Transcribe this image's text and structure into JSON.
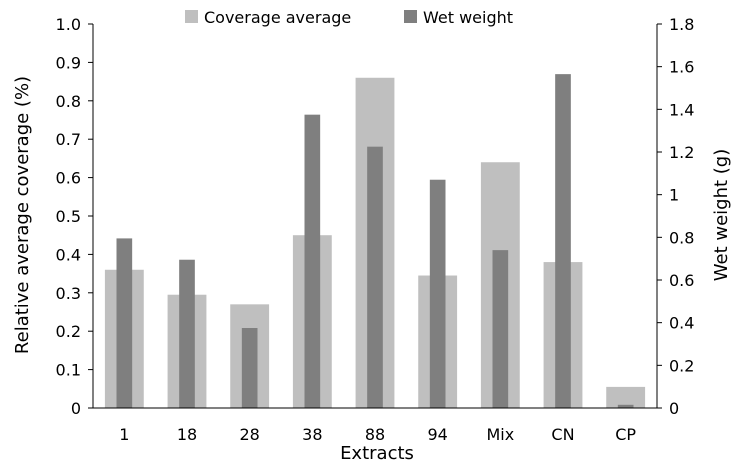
{
  "chart_data": {
    "type": "bar",
    "title": "",
    "xlabel": "Extracts",
    "ylabel": "Relative average coverage (%)",
    "y2label": "Wet weight (g)",
    "categories": [
      "1",
      "18",
      "28",
      "38",
      "88",
      "94",
      "Mix",
      "CN",
      "CP"
    ],
    "ylim": [
      0,
      1.0
    ],
    "y2lim": [
      0,
      1.8
    ],
    "yticks": [
      "0",
      "0.1",
      "0.2",
      "0.3",
      "0.4",
      "0.5",
      "0.6",
      "0.7",
      "0.8",
      "0.9",
      "1.0"
    ],
    "y2ticks": [
      "0",
      "0.2",
      "0.4",
      "0.6",
      "0.8",
      "1",
      "1.2",
      "1.4",
      "1.6",
      "1.8"
    ],
    "grid": false,
    "legend_position": "top-center",
    "series": [
      {
        "name": "Coverage average",
        "axis": "left",
        "color": "#bfbfbf",
        "values": [
          0.36,
          0.295,
          0.27,
          0.45,
          0.86,
          0.345,
          0.64,
          0.38,
          0.055
        ]
      },
      {
        "name": "Wet weight",
        "axis": "right",
        "color": "#7f7f7f",
        "values": [
          0.795,
          0.695,
          0.375,
          1.375,
          1.225,
          1.07,
          0.74,
          1.565,
          0.015
        ]
      }
    ]
  }
}
